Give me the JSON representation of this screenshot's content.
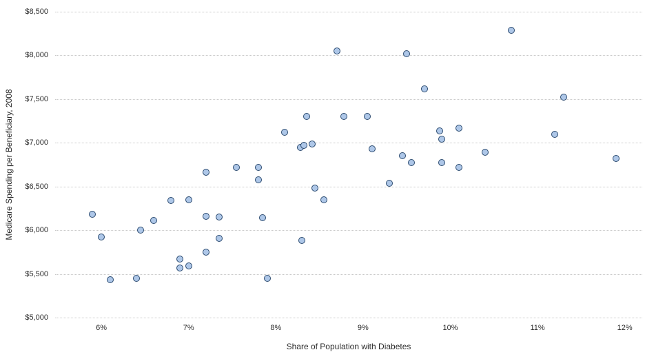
{
  "chart_data": {
    "type": "scatter",
    "title": "",
    "xlabel": "Share of Population with Diabetes",
    "ylabel": "Medicare Spending per Beneficiary, 2008",
    "xlim": [
      5.47,
      12.2
    ],
    "ylim": [
      5000,
      8500
    ],
    "x_ticks": [
      6,
      7,
      8,
      9,
      10,
      11,
      12
    ],
    "x_tick_labels": [
      "6%",
      "7%",
      "8%",
      "9%",
      "10%",
      "11%",
      "12%"
    ],
    "y_ticks": [
      5000,
      5500,
      6000,
      6500,
      7000,
      7500,
      8000,
      8500
    ],
    "y_tick_labels": [
      "$5,000",
      "$5,500",
      "$6,000",
      "$6,500",
      "$7,000",
      "$7,500",
      "$8,000",
      "$8,500"
    ],
    "grid": "horizontal-dotted",
    "legend": "none",
    "marker": {
      "fill": "#aec7e8",
      "stroke": "#2b4a6f",
      "diameter": 10
    },
    "points": [
      [
        5.9,
        6180
      ],
      [
        6.0,
        5920
      ],
      [
        6.1,
        5430
      ],
      [
        6.4,
        5450
      ],
      [
        6.45,
        6000
      ],
      [
        6.6,
        6110
      ],
      [
        6.8,
        6340
      ],
      [
        6.9,
        5670
      ],
      [
        6.9,
        5570
      ],
      [
        7.0,
        6350
      ],
      [
        7.0,
        5590
      ],
      [
        7.2,
        6660
      ],
      [
        7.2,
        6160
      ],
      [
        7.2,
        5750
      ],
      [
        7.35,
        6150
      ],
      [
        7.35,
        5910
      ],
      [
        7.55,
        6720
      ],
      [
        7.8,
        6720
      ],
      [
        7.8,
        6580
      ],
      [
        7.85,
        6140
      ],
      [
        7.9,
        5450
      ],
      [
        8.1,
        7120
      ],
      [
        8.28,
        6950
      ],
      [
        8.32,
        6970
      ],
      [
        8.3,
        5880
      ],
      [
        8.35,
        7300
      ],
      [
        8.42,
        6990
      ],
      [
        8.45,
        6480
      ],
      [
        8.55,
        6350
      ],
      [
        8.7,
        8050
      ],
      [
        8.78,
        7300
      ],
      [
        9.05,
        7300
      ],
      [
        9.1,
        6930
      ],
      [
        9.3,
        6540
      ],
      [
        9.45,
        6850
      ],
      [
        9.5,
        8020
      ],
      [
        9.55,
        6770
      ],
      [
        9.7,
        7620
      ],
      [
        9.88,
        7140
      ],
      [
        9.9,
        7040
      ],
      [
        9.9,
        6770
      ],
      [
        10.1,
        7170
      ],
      [
        10.1,
        6720
      ],
      [
        10.4,
        6890
      ],
      [
        10.7,
        8290
      ],
      [
        11.2,
        7100
      ],
      [
        11.3,
        7520
      ],
      [
        11.9,
        6820
      ]
    ]
  }
}
